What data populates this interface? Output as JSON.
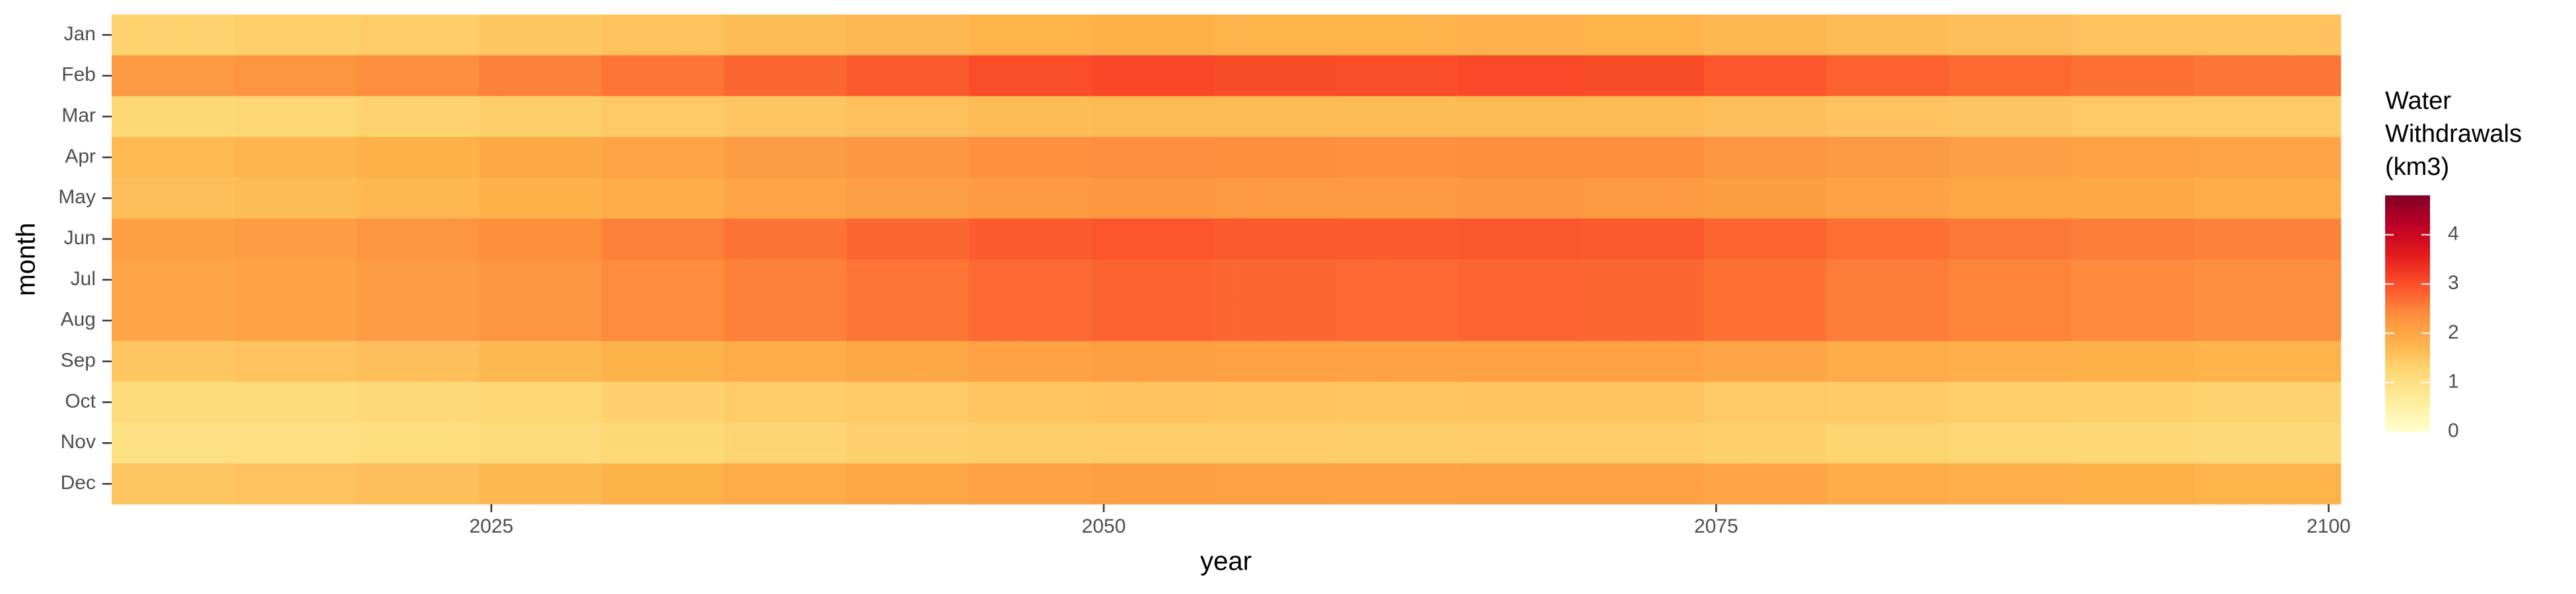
{
  "chart_data": {
    "type": "heatmap",
    "x_label": "year",
    "y_label": "month",
    "legend_title": "Water\nWithdrawals\n(km3)",
    "x": [
      2010,
      2011,
      2012,
      2013,
      2014,
      2015,
      2016,
      2017,
      2018,
      2019,
      2020,
      2021,
      2022,
      2023,
      2024,
      2025,
      2026,
      2027,
      2028,
      2029,
      2030,
      2031,
      2032,
      2033,
      2034,
      2035,
      2036,
      2037,
      2038,
      2039,
      2040,
      2041,
      2042,
      2043,
      2044,
      2045,
      2046,
      2047,
      2048,
      2049,
      2050,
      2051,
      2052,
      2053,
      2054,
      2055,
      2056,
      2057,
      2058,
      2059,
      2060,
      2061,
      2062,
      2063,
      2064,
      2065,
      2066,
      2067,
      2068,
      2069,
      2070,
      2071,
      2072,
      2073,
      2074,
      2075,
      2076,
      2077,
      2078,
      2079,
      2080,
      2081,
      2082,
      2083,
      2084,
      2085,
      2086,
      2087,
      2088,
      2089,
      2090,
      2091,
      2092,
      2093,
      2094,
      2095,
      2096,
      2097,
      2098,
      2099,
      2100
    ],
    "xlim": [
      2009.5,
      2100.5
    ],
    "xticks": [
      2025,
      2050,
      2075,
      2100
    ],
    "clim": [
      0,
      4.8
    ],
    "cticks": [
      0,
      1,
      2,
      3,
      4
    ],
    "colors": [
      "#ffffcc",
      "#ffeda0",
      "#fed976",
      "#feb24c",
      "#fd8d3c",
      "#fc4e2a",
      "#e31a1c",
      "#bd0026",
      "#800026"
    ],
    "series": [
      {
        "name": "Jan",
        "values": [
          1.3,
          1.3,
          1.3,
          1.3,
          1.3,
          1.34,
          1.34,
          1.34,
          1.34,
          1.34,
          1.4,
          1.4,
          1.4,
          1.4,
          1.4,
          1.48,
          1.48,
          1.48,
          1.48,
          1.48,
          1.56,
          1.56,
          1.56,
          1.56,
          1.56,
          1.64,
          1.64,
          1.64,
          1.64,
          1.64,
          1.72,
          1.72,
          1.72,
          1.72,
          1.72,
          1.78,
          1.78,
          1.78,
          1.78,
          1.78,
          1.82,
          1.82,
          1.82,
          1.82,
          1.82,
          1.79,
          1.79,
          1.79,
          1.79,
          1.79,
          1.78,
          1.78,
          1.78,
          1.78,
          1.78,
          1.81,
          1.81,
          1.81,
          1.81,
          1.81,
          1.79,
          1.79,
          1.79,
          1.79,
          1.79,
          1.73,
          1.73,
          1.73,
          1.73,
          1.73,
          1.66,
          1.66,
          1.66,
          1.66,
          1.66,
          1.61,
          1.61,
          1.61,
          1.61,
          1.61,
          1.57,
          1.57,
          1.57,
          1.57,
          1.57,
          1.55,
          1.55,
          1.55,
          1.55,
          1.55,
          1.55
        ]
      },
      {
        "name": "Feb",
        "values": [
          2.2,
          2.2,
          2.2,
          2.2,
          2.2,
          2.27,
          2.27,
          2.27,
          2.27,
          2.27,
          2.38,
          2.38,
          2.38,
          2.38,
          2.38,
          2.51,
          2.51,
          2.51,
          2.51,
          2.51,
          2.64,
          2.64,
          2.64,
          2.64,
          2.64,
          2.77,
          2.77,
          2.77,
          2.77,
          2.77,
          2.9,
          2.9,
          2.9,
          2.9,
          2.9,
          3.01,
          3.01,
          3.01,
          3.01,
          3.01,
          3.08,
          3.08,
          3.08,
          3.08,
          3.08,
          3.04,
          3.04,
          3.04,
          3.04,
          3.04,
          3.01,
          3.01,
          3.01,
          3.01,
          3.01,
          3.06,
          3.06,
          3.06,
          3.06,
          3.06,
          3.04,
          3.04,
          3.04,
          3.04,
          3.04,
          2.93,
          2.93,
          2.93,
          2.93,
          2.93,
          2.82,
          2.82,
          2.82,
          2.82,
          2.82,
          2.73,
          2.73,
          2.73,
          2.73,
          2.73,
          2.66,
          2.66,
          2.66,
          2.66,
          2.66,
          2.62,
          2.62,
          2.62,
          2.62,
          2.62,
          2.62
        ]
      },
      {
        "name": "Mar",
        "values": [
          1.2,
          1.2,
          1.2,
          1.2,
          1.2,
          1.24,
          1.24,
          1.24,
          1.24,
          1.24,
          1.3,
          1.3,
          1.3,
          1.3,
          1.3,
          1.37,
          1.37,
          1.37,
          1.37,
          1.37,
          1.44,
          1.44,
          1.44,
          1.44,
          1.44,
          1.51,
          1.51,
          1.51,
          1.51,
          1.51,
          1.58,
          1.58,
          1.58,
          1.58,
          1.58,
          1.64,
          1.64,
          1.64,
          1.64,
          1.64,
          1.68,
          1.68,
          1.68,
          1.68,
          1.68,
          1.66,
          1.66,
          1.66,
          1.66,
          1.66,
          1.64,
          1.64,
          1.64,
          1.64,
          1.64,
          1.67,
          1.67,
          1.67,
          1.67,
          1.67,
          1.66,
          1.66,
          1.66,
          1.66,
          1.66,
          1.6,
          1.6,
          1.6,
          1.6,
          1.6,
          1.54,
          1.54,
          1.54,
          1.54,
          1.54,
          1.49,
          1.49,
          1.49,
          1.49,
          1.49,
          1.45,
          1.45,
          1.45,
          1.45,
          1.45,
          1.43,
          1.43,
          1.43,
          1.43,
          1.43,
          1.43
        ]
      },
      {
        "name": "Apr",
        "values": [
          1.7,
          1.7,
          1.7,
          1.7,
          1.7,
          1.75,
          1.75,
          1.75,
          1.75,
          1.75,
          1.84,
          1.84,
          1.84,
          1.84,
          1.84,
          1.94,
          1.94,
          1.94,
          1.94,
          1.94,
          2.04,
          2.04,
          2.04,
          2.04,
          2.04,
          2.14,
          2.14,
          2.14,
          2.14,
          2.14,
          2.24,
          2.24,
          2.24,
          2.24,
          2.24,
          2.33,
          2.33,
          2.33,
          2.33,
          2.33,
          2.38,
          2.38,
          2.38,
          2.38,
          2.38,
          2.35,
          2.35,
          2.35,
          2.35,
          2.35,
          2.33,
          2.33,
          2.33,
          2.33,
          2.33,
          2.36,
          2.36,
          2.36,
          2.36,
          2.36,
          2.35,
          2.35,
          2.35,
          2.35,
          2.35,
          2.26,
          2.26,
          2.26,
          2.26,
          2.26,
          2.18,
          2.18,
          2.18,
          2.18,
          2.18,
          2.11,
          2.11,
          2.11,
          2.11,
          2.11,
          2.06,
          2.06,
          2.06,
          2.06,
          2.06,
          2.02,
          2.02,
          2.02,
          2.02,
          2.02,
          2.02
        ]
      },
      {
        "name": "May",
        "values": [
          1.6,
          1.6,
          1.6,
          1.6,
          1.6,
          1.65,
          1.65,
          1.65,
          1.65,
          1.65,
          1.73,
          1.73,
          1.73,
          1.73,
          1.73,
          1.82,
          1.82,
          1.82,
          1.82,
          1.82,
          1.92,
          1.92,
          1.92,
          1.92,
          1.92,
          2.02,
          2.02,
          2.02,
          2.02,
          2.02,
          2.11,
          2.11,
          2.11,
          2.11,
          2.11,
          2.19,
          2.19,
          2.19,
          2.19,
          2.19,
          2.24,
          2.24,
          2.24,
          2.24,
          2.24,
          2.21,
          2.21,
          2.21,
          2.21,
          2.21,
          2.19,
          2.19,
          2.19,
          2.19,
          2.19,
          2.22,
          2.22,
          2.22,
          2.22,
          2.22,
          2.21,
          2.21,
          2.21,
          2.21,
          2.21,
          2.13,
          2.13,
          2.13,
          2.13,
          2.13,
          2.05,
          2.05,
          2.05,
          2.05,
          2.05,
          1.98,
          1.98,
          1.98,
          1.98,
          1.98,
          1.94,
          1.94,
          1.94,
          1.94,
          1.94,
          1.9,
          1.9,
          1.9,
          1.9,
          1.9,
          1.9
        ]
      },
      {
        "name": "Jun",
        "values": [
          2.1,
          2.1,
          2.1,
          2.1,
          2.1,
          2.16,
          2.16,
          2.16,
          2.16,
          2.16,
          2.27,
          2.27,
          2.27,
          2.27,
          2.27,
          2.39,
          2.39,
          2.39,
          2.39,
          2.39,
          2.52,
          2.52,
          2.52,
          2.52,
          2.52,
          2.65,
          2.65,
          2.65,
          2.65,
          2.65,
          2.77,
          2.77,
          2.77,
          2.77,
          2.77,
          2.88,
          2.88,
          2.88,
          2.88,
          2.88,
          2.94,
          2.94,
          2.94,
          2.94,
          2.94,
          2.9,
          2.9,
          2.9,
          2.9,
          2.9,
          2.88,
          2.88,
          2.88,
          2.88,
          2.88,
          2.92,
          2.92,
          2.92,
          2.92,
          2.92,
          2.9,
          2.9,
          2.9,
          2.9,
          2.9,
          2.79,
          2.79,
          2.79,
          2.79,
          2.79,
          2.69,
          2.69,
          2.69,
          2.69,
          2.69,
          2.6,
          2.6,
          2.6,
          2.6,
          2.6,
          2.54,
          2.54,
          2.54,
          2.54,
          2.54,
          2.5,
          2.5,
          2.5,
          2.5,
          2.5,
          2.5
        ]
      },
      {
        "name": "Jul",
        "values": [
          2.0,
          2.0,
          2.0,
          2.0,
          2.0,
          2.06,
          2.06,
          2.06,
          2.06,
          2.06,
          2.16,
          2.16,
          2.16,
          2.16,
          2.16,
          2.28,
          2.28,
          2.28,
          2.28,
          2.28,
          2.4,
          2.4,
          2.4,
          2.4,
          2.4,
          2.52,
          2.52,
          2.52,
          2.52,
          2.52,
          2.64,
          2.64,
          2.64,
          2.64,
          2.64,
          2.74,
          2.74,
          2.74,
          2.74,
          2.74,
          2.8,
          2.8,
          2.8,
          2.8,
          2.8,
          2.76,
          2.76,
          2.76,
          2.76,
          2.76,
          2.74,
          2.74,
          2.74,
          2.74,
          2.74,
          2.78,
          2.78,
          2.78,
          2.78,
          2.78,
          2.76,
          2.76,
          2.76,
          2.76,
          2.76,
          2.66,
          2.66,
          2.66,
          2.66,
          2.66,
          2.56,
          2.56,
          2.56,
          2.56,
          2.56,
          2.48,
          2.48,
          2.48,
          2.48,
          2.48,
          2.42,
          2.42,
          2.42,
          2.42,
          2.42,
          2.38,
          2.38,
          2.38,
          2.38,
          2.38,
          2.38
        ]
      },
      {
        "name": "Aug",
        "values": [
          2.0,
          2.0,
          2.0,
          2.0,
          2.0,
          2.06,
          2.06,
          2.06,
          2.06,
          2.06,
          2.16,
          2.16,
          2.16,
          2.16,
          2.16,
          2.28,
          2.28,
          2.28,
          2.28,
          2.28,
          2.4,
          2.4,
          2.4,
          2.4,
          2.4,
          2.52,
          2.52,
          2.52,
          2.52,
          2.52,
          2.64,
          2.64,
          2.64,
          2.64,
          2.64,
          2.74,
          2.74,
          2.74,
          2.74,
          2.74,
          2.8,
          2.8,
          2.8,
          2.8,
          2.8,
          2.76,
          2.76,
          2.76,
          2.76,
          2.76,
          2.74,
          2.74,
          2.74,
          2.74,
          2.74,
          2.78,
          2.78,
          2.78,
          2.78,
          2.78,
          2.76,
          2.76,
          2.76,
          2.76,
          2.76,
          2.66,
          2.66,
          2.66,
          2.66,
          2.66,
          2.56,
          2.56,
          2.56,
          2.56,
          2.56,
          2.48,
          2.48,
          2.48,
          2.48,
          2.48,
          2.42,
          2.42,
          2.42,
          2.42,
          2.42,
          2.38,
          2.38,
          2.38,
          2.38,
          2.38,
          2.38
        ]
      },
      {
        "name": "Sep",
        "values": [
          1.5,
          1.5,
          1.5,
          1.5,
          1.5,
          1.55,
          1.55,
          1.55,
          1.55,
          1.55,
          1.62,
          1.62,
          1.62,
          1.62,
          1.62,
          1.71,
          1.71,
          1.71,
          1.71,
          1.71,
          1.8,
          1.8,
          1.8,
          1.8,
          1.8,
          1.89,
          1.89,
          1.89,
          1.89,
          1.89,
          1.98,
          1.98,
          1.98,
          1.98,
          1.98,
          2.06,
          2.06,
          2.06,
          2.06,
          2.06,
          2.1,
          2.1,
          2.1,
          2.1,
          2.1,
          2.07,
          2.07,
          2.07,
          2.07,
          2.07,
          2.06,
          2.06,
          2.06,
          2.06,
          2.06,
          2.09,
          2.09,
          2.09,
          2.09,
          2.09,
          2.07,
          2.07,
          2.07,
          2.07,
          2.07,
          2.0,
          2.0,
          2.0,
          2.0,
          2.0,
          1.92,
          1.92,
          1.92,
          1.92,
          1.92,
          1.86,
          1.86,
          1.86,
          1.86,
          1.86,
          1.82,
          1.82,
          1.82,
          1.82,
          1.82,
          1.79,
          1.79,
          1.79,
          1.79,
          1.79,
          1.79
        ]
      },
      {
        "name": "Oct",
        "values": [
          1.1,
          1.1,
          1.1,
          1.1,
          1.1,
          1.13,
          1.13,
          1.13,
          1.13,
          1.13,
          1.19,
          1.19,
          1.19,
          1.19,
          1.19,
          1.25,
          1.25,
          1.25,
          1.25,
          1.25,
          1.32,
          1.32,
          1.32,
          1.32,
          1.32,
          1.39,
          1.39,
          1.39,
          1.39,
          1.39,
          1.45,
          1.45,
          1.45,
          1.45,
          1.45,
          1.51,
          1.51,
          1.51,
          1.51,
          1.51,
          1.54,
          1.54,
          1.54,
          1.54,
          1.54,
          1.52,
          1.52,
          1.52,
          1.52,
          1.52,
          1.51,
          1.51,
          1.51,
          1.51,
          1.51,
          1.53,
          1.53,
          1.53,
          1.53,
          1.53,
          1.52,
          1.52,
          1.52,
          1.52,
          1.52,
          1.46,
          1.46,
          1.46,
          1.46,
          1.46,
          1.41,
          1.41,
          1.41,
          1.41,
          1.41,
          1.36,
          1.36,
          1.36,
          1.36,
          1.36,
          1.33,
          1.33,
          1.33,
          1.33,
          1.33,
          1.31,
          1.31,
          1.31,
          1.31,
          1.31,
          1.31
        ]
      },
      {
        "name": "Nov",
        "values": [
          1.0,
          1.0,
          1.0,
          1.0,
          1.0,
          1.03,
          1.03,
          1.03,
          1.03,
          1.03,
          1.08,
          1.08,
          1.08,
          1.08,
          1.08,
          1.14,
          1.14,
          1.14,
          1.14,
          1.14,
          1.2,
          1.2,
          1.2,
          1.2,
          1.2,
          1.26,
          1.26,
          1.26,
          1.26,
          1.26,
          1.32,
          1.32,
          1.32,
          1.32,
          1.32,
          1.37,
          1.37,
          1.37,
          1.37,
          1.37,
          1.4,
          1.4,
          1.4,
          1.4,
          1.4,
          1.38,
          1.38,
          1.38,
          1.38,
          1.38,
          1.37,
          1.37,
          1.37,
          1.37,
          1.37,
          1.39,
          1.39,
          1.39,
          1.39,
          1.39,
          1.38,
          1.38,
          1.38,
          1.38,
          1.38,
          1.33,
          1.33,
          1.33,
          1.33,
          1.33,
          1.28,
          1.28,
          1.28,
          1.28,
          1.28,
          1.24,
          1.24,
          1.24,
          1.24,
          1.24,
          1.21,
          1.21,
          1.21,
          1.21,
          1.21,
          1.19,
          1.19,
          1.19,
          1.19,
          1.19,
          1.19
        ]
      },
      {
        "name": "Dec",
        "values": [
          1.5,
          1.5,
          1.5,
          1.5,
          1.5,
          1.55,
          1.55,
          1.55,
          1.55,
          1.55,
          1.62,
          1.62,
          1.62,
          1.62,
          1.62,
          1.71,
          1.71,
          1.71,
          1.71,
          1.71,
          1.8,
          1.8,
          1.8,
          1.8,
          1.8,
          1.89,
          1.89,
          1.89,
          1.89,
          1.89,
          1.98,
          1.98,
          1.98,
          1.98,
          1.98,
          2.06,
          2.06,
          2.06,
          2.06,
          2.06,
          2.1,
          2.1,
          2.1,
          2.1,
          2.1,
          2.07,
          2.07,
          2.07,
          2.07,
          2.07,
          2.06,
          2.06,
          2.06,
          2.06,
          2.06,
          2.09,
          2.09,
          2.09,
          2.09,
          2.09,
          2.07,
          2.07,
          2.07,
          2.07,
          2.07,
          2.0,
          2.0,
          2.0,
          2.0,
          2.0,
          1.92,
          1.92,
          1.92,
          1.92,
          1.92,
          1.86,
          1.86,
          1.86,
          1.86,
          1.86,
          1.82,
          1.82,
          1.82,
          1.82,
          1.82,
          1.79,
          1.79,
          1.79,
          1.79,
          1.79,
          1.79
        ]
      }
    ]
  }
}
